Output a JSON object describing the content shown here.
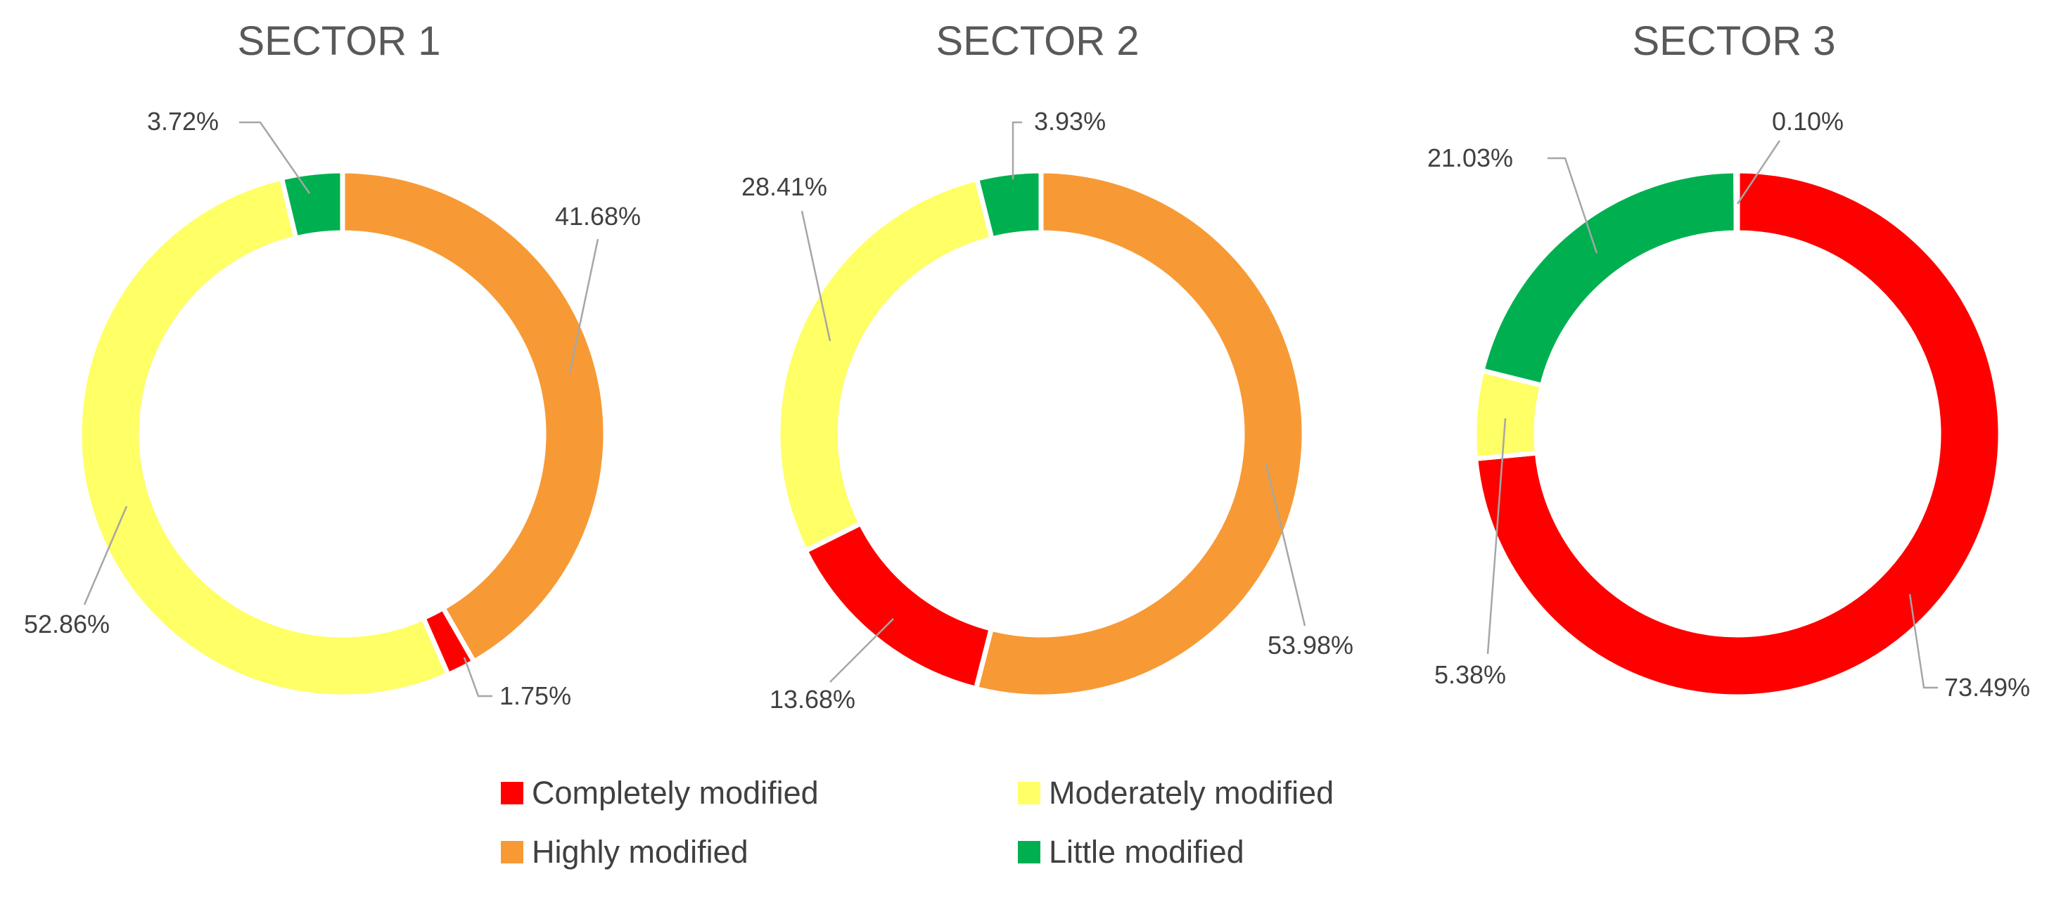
{
  "chart_data": [
    {
      "type": "pie",
      "title": "SECTOR 1",
      "categories": [
        "Highly modified",
        "Completely modified",
        "Moderately modified",
        "Little modified"
      ],
      "values": [
        41.68,
        1.75,
        52.86,
        3.72
      ],
      "labels": [
        "41.68%",
        "1.75%",
        "52.86%",
        "3.72%"
      ],
      "colors": [
        "#F79A35",
        "#FF0000",
        "#FFFF66",
        "#00B050"
      ]
    },
    {
      "type": "pie",
      "title": "SECTOR 2",
      "categories": [
        "Highly modified",
        "Completely modified",
        "Moderately modified",
        "Little modified"
      ],
      "values": [
        53.98,
        13.68,
        28.41,
        3.93
      ],
      "labels": [
        "53.98%",
        "13.68%",
        "28.41%",
        "3.93%"
      ],
      "colors": [
        "#F79A35",
        "#FF0000",
        "#FFFF66",
        "#00B050"
      ]
    },
    {
      "type": "pie",
      "title": "SECTOR 3",
      "categories": [
        "Completely modified",
        "Moderately modified",
        "Little modified",
        "Highly modified"
      ],
      "values": [
        73.49,
        5.38,
        21.03,
        0.1
      ],
      "labels": [
        "73.49%",
        "5.38%",
        "21.03%",
        "0.10%"
      ],
      "colors": [
        "#FF0000",
        "#FFFF66",
        "#00B050",
        "#F79A35"
      ]
    }
  ],
  "legend": {
    "items": [
      {
        "label": "Completely modified",
        "color": "#FF0000"
      },
      {
        "label": "Highly modified",
        "color": "#F79A35"
      },
      {
        "label": "Moderately modified",
        "color": "#FFFF66"
      },
      {
        "label": "Little modified",
        "color": "#00B050"
      }
    ]
  }
}
